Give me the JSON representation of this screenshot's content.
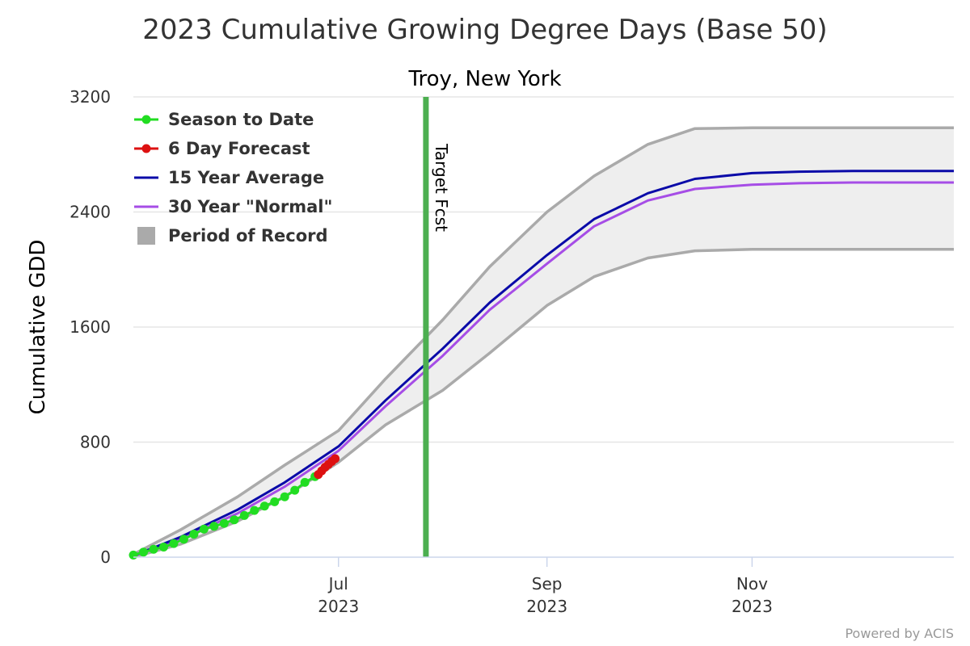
{
  "chart_data": {
    "type": "line",
    "title": "2023 Cumulative Growing Degree Days (Base 50)",
    "subtitle": "Troy, New York",
    "ylabel": "Cumulative GDD",
    "xlabel": "",
    "ylim": [
      0,
      3200
    ],
    "xlim": [
      "2023-05-01",
      "2023-12-31"
    ],
    "yticks": [
      "0",
      "800",
      "1600",
      "2400",
      "3200"
    ],
    "xticks": [
      {
        "date": "2023-07-01",
        "label": "Jul",
        "year": "2023"
      },
      {
        "date": "2023-09-01",
        "label": "Sep",
        "year": "2023"
      },
      {
        "date": "2023-11-01",
        "label": "Nov",
        "year": "2023"
      }
    ],
    "grid": true,
    "legend_position": "top-left",
    "target_line": {
      "date": "2023-07-27",
      "label": "Target Fcst",
      "color": "#4caf50"
    },
    "series": [
      {
        "name": "Season to Date",
        "kind": "line-markers",
        "color": "#22dd22",
        "points": [
          [
            "2023-05-01",
            15
          ],
          [
            "2023-05-04",
            35
          ],
          [
            "2023-05-07",
            55
          ],
          [
            "2023-05-10",
            70
          ],
          [
            "2023-05-13",
            95
          ],
          [
            "2023-05-16",
            125
          ],
          [
            "2023-05-19",
            160
          ],
          [
            "2023-05-22",
            195
          ],
          [
            "2023-05-25",
            215
          ],
          [
            "2023-05-28",
            235
          ],
          [
            "2023-05-31",
            260
          ],
          [
            "2023-06-03",
            290
          ],
          [
            "2023-06-06",
            325
          ],
          [
            "2023-06-09",
            355
          ],
          [
            "2023-06-12",
            385
          ],
          [
            "2023-06-15",
            420
          ],
          [
            "2023-06-18",
            465
          ],
          [
            "2023-06-21",
            520
          ],
          [
            "2023-06-24",
            560
          ]
        ]
      },
      {
        "name": "6 Day Forecast",
        "kind": "line-markers",
        "color": "#dd1111",
        "points": [
          [
            "2023-06-25",
            575
          ],
          [
            "2023-06-26",
            600
          ],
          [
            "2023-06-27",
            625
          ],
          [
            "2023-06-28",
            645
          ],
          [
            "2023-06-29",
            665
          ],
          [
            "2023-06-30",
            685
          ]
        ]
      },
      {
        "name": "15 Year Average",
        "kind": "line",
        "color": "#0a0aa8",
        "points": [
          [
            "2023-05-01",
            10
          ],
          [
            "2023-05-15",
            140
          ],
          [
            "2023-06-01",
            330
          ],
          [
            "2023-06-15",
            520
          ],
          [
            "2023-07-01",
            770
          ],
          [
            "2023-07-15",
            1090
          ],
          [
            "2023-08-01",
            1450
          ],
          [
            "2023-08-15",
            1770
          ],
          [
            "2023-09-01",
            2100
          ],
          [
            "2023-09-15",
            2350
          ],
          [
            "2023-10-01",
            2530
          ],
          [
            "2023-10-15",
            2630
          ],
          [
            "2023-11-01",
            2670
          ],
          [
            "2023-11-15",
            2680
          ],
          [
            "2023-12-01",
            2685
          ],
          [
            "2023-12-31",
            2685
          ]
        ]
      },
      {
        "name": "30 Year \"Normal\"",
        "kind": "line",
        "color": "#a64de6",
        "points": [
          [
            "2023-05-01",
            8
          ],
          [
            "2023-05-15",
            125
          ],
          [
            "2023-06-01",
            305
          ],
          [
            "2023-06-15",
            490
          ],
          [
            "2023-07-01",
            740
          ],
          [
            "2023-07-15",
            1050
          ],
          [
            "2023-08-01",
            1400
          ],
          [
            "2023-08-15",
            1720
          ],
          [
            "2023-09-01",
            2040
          ],
          [
            "2023-09-15",
            2300
          ],
          [
            "2023-10-01",
            2480
          ],
          [
            "2023-10-15",
            2560
          ],
          [
            "2023-11-01",
            2590
          ],
          [
            "2023-11-15",
            2600
          ],
          [
            "2023-12-01",
            2605
          ],
          [
            "2023-12-31",
            2605
          ]
        ]
      },
      {
        "name": "Period of Record",
        "kind": "range",
        "color": "#aaaaaa",
        "fill": "#eeeeee",
        "upper": [
          [
            "2023-05-01",
            20
          ],
          [
            "2023-05-15",
            190
          ],
          [
            "2023-06-01",
            420
          ],
          [
            "2023-06-15",
            640
          ],
          [
            "2023-07-01",
            880
          ],
          [
            "2023-07-15",
            1240
          ],
          [
            "2023-08-01",
            1650
          ],
          [
            "2023-08-15",
            2020
          ],
          [
            "2023-09-01",
            2400
          ],
          [
            "2023-09-15",
            2650
          ],
          [
            "2023-10-01",
            2870
          ],
          [
            "2023-10-15",
            2980
          ],
          [
            "2023-11-01",
            2985
          ],
          [
            "2023-12-31",
            2985
          ]
        ],
        "lower": [
          [
            "2023-05-01",
            0
          ],
          [
            "2023-05-15",
            90
          ],
          [
            "2023-06-01",
            250
          ],
          [
            "2023-06-15",
            420
          ],
          [
            "2023-07-01",
            660
          ],
          [
            "2023-07-15",
            920
          ],
          [
            "2023-08-01",
            1160
          ],
          [
            "2023-08-15",
            1420
          ],
          [
            "2023-09-01",
            1750
          ],
          [
            "2023-09-15",
            1950
          ],
          [
            "2023-10-01",
            2080
          ],
          [
            "2023-10-15",
            2130
          ],
          [
            "2023-11-01",
            2140
          ],
          [
            "2023-12-31",
            2140
          ]
        ]
      }
    ]
  },
  "credit": "Powered by ACIS"
}
